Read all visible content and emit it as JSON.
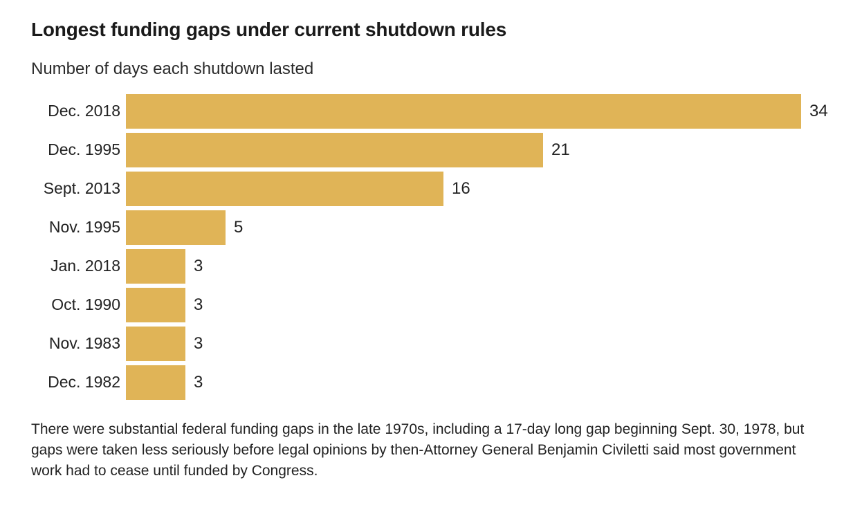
{
  "header": {
    "title": "Longest funding gaps under current shutdown rules",
    "subtitle": "Number of days each shutdown lasted"
  },
  "chart_data": {
    "type": "bar",
    "orientation": "horizontal",
    "title": "Longest funding gaps under current shutdown rules",
    "subtitle": "Number of days each shutdown lasted",
    "categories": [
      "Dec. 2018",
      "Dec. 1995",
      "Sept. 2013",
      "Nov. 1995",
      "Jan. 2018",
      "Oct. 1990",
      "Nov. 1983",
      "Dec. 1982"
    ],
    "values": [
      34,
      21,
      16,
      5,
      3,
      3,
      3,
      3
    ],
    "value_labels_shown": true,
    "xlabel": "",
    "ylabel": "",
    "xlim": [
      0,
      34
    ],
    "grid": false,
    "legend": false,
    "bar_color": "#e0b457",
    "text_color": "#222222"
  },
  "footer": {
    "note": "There were substantial federal funding gaps in the late 1970s, including a 17-day long gap beginning Sept. 30, 1978, but gaps were taken less seriously before legal opinions by then-Attorney General Benjamin Civiletti said most government work had to cease until funded by Congress."
  }
}
